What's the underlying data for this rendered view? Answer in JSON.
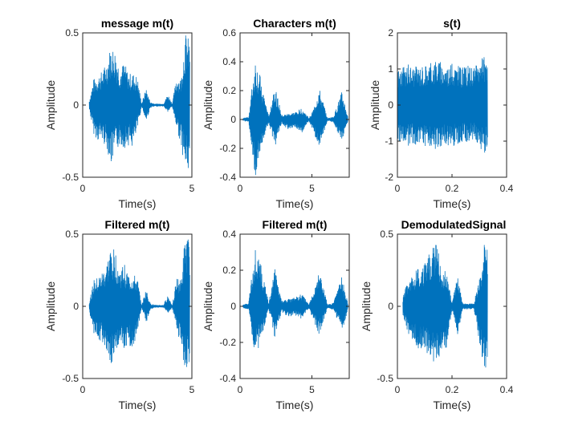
{
  "chart_data": [
    {
      "type": "line",
      "title": "message m(t)",
      "xlabel": "Time(s)",
      "ylabel": "Amplitude",
      "xlim": [
        0,
        5
      ],
      "ylim": [
        -0.5,
        0.5
      ],
      "xticks": [
        "0",
        "5"
      ],
      "yticks": [
        "-0.5",
        "0",
        "0.5"
      ],
      "color": "#0072BD",
      "series": [
        {
          "x": [
            0.3,
            0.5,
            0.7,
            0.9,
            1.1,
            1.3,
            1.5,
            1.7,
            1.9,
            2.1,
            2.3,
            2.5,
            2.7,
            2.9,
            3.1,
            3.3,
            3.5,
            3.7,
            3.9,
            4.1,
            4.3,
            4.5,
            4.7,
            4.9
          ],
          "y_max": [
            0.03,
            0.18,
            0.2,
            0.24,
            0.3,
            0.42,
            0.38,
            0.25,
            0.3,
            0.22,
            0.22,
            0.2,
            0.01,
            0.12,
            0.02,
            0.01,
            0.01,
            0.01,
            0.08,
            0.01,
            0.2,
            0.18,
            0.5,
            0.45
          ],
          "y_min": [
            -0.03,
            -0.2,
            -0.25,
            -0.25,
            -0.3,
            -0.42,
            -0.33,
            -0.28,
            -0.3,
            -0.28,
            -0.3,
            -0.18,
            -0.01,
            -0.12,
            -0.02,
            -0.01,
            -0.01,
            -0.01,
            -0.05,
            -0.01,
            -0.16,
            -0.28,
            -0.45,
            -0.47
          ]
        }
      ]
    },
    {
      "type": "line",
      "title": "Characters m(t)",
      "xlabel": "Time(s)",
      "ylabel": "Amplitude",
      "xlim": [
        0,
        7.6
      ],
      "ylim": [
        -0.4,
        0.6
      ],
      "xticks": [
        "0",
        "5"
      ],
      "yticks": [
        "-0.4",
        "-0.2",
        "0",
        "0.2",
        "0.4",
        "0.6"
      ],
      "color": "#0072BD",
      "series": [
        {
          "x": [
            0.2,
            0.6,
            1.05,
            1.4,
            2.0,
            2.4,
            2.9,
            3.3,
            3.8,
            4.3,
            4.8,
            5.1,
            5.5,
            6.1,
            6.5,
            7.1,
            7.5
          ],
          "y_max": [
            0.01,
            0.02,
            0.43,
            0.3,
            0.02,
            0.25,
            0.03,
            0.04,
            0.05,
            0.08,
            0.01,
            0.07,
            0.22,
            0.01,
            0.02,
            0.2,
            0.02
          ],
          "y_min": [
            -0.01,
            -0.02,
            -0.4,
            -0.22,
            -0.02,
            -0.2,
            -0.03,
            -0.07,
            -0.05,
            -0.1,
            -0.01,
            -0.09,
            -0.19,
            -0.01,
            -0.02,
            -0.16,
            -0.02
          ]
        }
      ]
    },
    {
      "type": "line",
      "title": "s(t)",
      "xlabel": "Time(s)",
      "ylabel": "Amplitude",
      "xlim": [
        0,
        0.4
      ],
      "ylim": [
        -2,
        2
      ],
      "xticks": [
        "0",
        "0.2",
        "0.4"
      ],
      "yticks": [
        "-2",
        "-1",
        "0",
        "1",
        "2"
      ],
      "color": "#0072BD",
      "series": [
        {
          "x": [
            0.0,
            0.02,
            0.04,
            0.06,
            0.08,
            0.1,
            0.12,
            0.14,
            0.16,
            0.18,
            0.2,
            0.22,
            0.24,
            0.26,
            0.28,
            0.3,
            0.32,
            0.33
          ],
          "y_max": [
            1.02,
            1.05,
            1.15,
            1.1,
            1.1,
            1.15,
            1.2,
            1.3,
            1.2,
            1.1,
            1.15,
            1.1,
            1.05,
            1.1,
            1.05,
            1.25,
            1.35,
            1.1
          ],
          "y_min": [
            -1.02,
            -1.05,
            -1.15,
            -1.1,
            -1.1,
            -1.15,
            -1.25,
            -1.3,
            -1.2,
            -1.1,
            -1.15,
            -1.1,
            -1.05,
            -1.1,
            -1.05,
            -1.25,
            -1.35,
            -1.1
          ]
        }
      ]
    },
    {
      "type": "line",
      "title": "Filtered m(t)",
      "xlabel": "Time(s)",
      "ylabel": "Amplitude",
      "xlim": [
        0,
        5
      ],
      "ylim": [
        -0.5,
        0.5
      ],
      "xticks": [
        "0",
        "5"
      ],
      "yticks": [
        "-0.5",
        "0",
        "0.5"
      ],
      "color": "#0072BD",
      "series": [
        {
          "x": [
            0.3,
            0.5,
            0.7,
            0.9,
            1.1,
            1.3,
            1.5,
            1.7,
            1.9,
            2.1,
            2.3,
            2.5,
            2.7,
            2.9,
            3.1,
            3.3,
            3.5,
            3.7,
            3.9,
            4.1,
            4.3,
            4.5,
            4.7,
            4.9
          ],
          "y_max": [
            0.03,
            0.18,
            0.2,
            0.24,
            0.3,
            0.42,
            0.38,
            0.25,
            0.3,
            0.22,
            0.22,
            0.2,
            0.01,
            0.12,
            0.02,
            0.01,
            0.01,
            0.01,
            0.08,
            0.01,
            0.2,
            0.18,
            0.5,
            0.45
          ],
          "y_min": [
            -0.03,
            -0.2,
            -0.25,
            -0.25,
            -0.3,
            -0.42,
            -0.33,
            -0.28,
            -0.3,
            -0.28,
            -0.3,
            -0.18,
            -0.01,
            -0.12,
            -0.02,
            -0.01,
            -0.01,
            -0.01,
            -0.05,
            -0.01,
            -0.16,
            -0.28,
            -0.45,
            -0.44
          ]
        }
      ]
    },
    {
      "type": "line",
      "title": "Filtered m(t)",
      "xlabel": "Time(s)",
      "ylabel": "Amplitude",
      "xlim": [
        0,
        7.6
      ],
      "ylim": [
        -0.4,
        0.4
      ],
      "xticks": [
        "0",
        "5"
      ],
      "yticks": [
        "-0.4",
        "-0.2",
        "0",
        "0.2",
        "0.4"
      ],
      "color": "#0072BD",
      "series": [
        {
          "x": [
            0.2,
            0.6,
            1.05,
            1.4,
            2.0,
            2.4,
            2.9,
            3.3,
            3.8,
            4.3,
            4.8,
            5.1,
            5.5,
            6.1,
            6.5,
            7.1,
            7.5
          ],
          "y_max": [
            0.01,
            0.02,
            0.35,
            0.25,
            0.02,
            0.22,
            0.03,
            0.04,
            0.05,
            0.07,
            0.01,
            0.08,
            0.2,
            0.01,
            0.02,
            0.17,
            0.02
          ],
          "y_min": [
            -0.01,
            -0.02,
            -0.3,
            -0.2,
            -0.02,
            -0.18,
            -0.03,
            -0.06,
            -0.05,
            -0.07,
            -0.01,
            -0.08,
            -0.16,
            -0.01,
            -0.02,
            -0.14,
            -0.02
          ]
        }
      ]
    },
    {
      "type": "line",
      "title": "DemodulatedSignal",
      "xlabel": "Time(s)",
      "ylabel": "Amplitude",
      "xlim": [
        0,
        0.4
      ],
      "ylim": [
        -0.5,
        0.5
      ],
      "xticks": [
        "0",
        "0.2",
        "0.4"
      ],
      "yticks": [
        "-0.5",
        "0",
        "0.5"
      ],
      "color": "#0072BD",
      "series": [
        {
          "x": [
            0.02,
            0.04,
            0.06,
            0.08,
            0.1,
            0.12,
            0.14,
            0.16,
            0.18,
            0.2,
            0.22,
            0.24,
            0.26,
            0.28,
            0.3,
            0.32,
            0.33
          ],
          "y_max": [
            0.06,
            0.2,
            0.24,
            0.28,
            0.3,
            0.38,
            0.45,
            0.3,
            0.25,
            0.02,
            0.22,
            0.02,
            0.02,
            0.02,
            0.2,
            0.5,
            0.45
          ],
          "y_min": [
            -0.06,
            -0.2,
            -0.25,
            -0.3,
            -0.3,
            -0.38,
            -0.4,
            -0.35,
            -0.3,
            -0.02,
            -0.2,
            -0.02,
            -0.02,
            -0.02,
            -0.25,
            -0.45,
            -0.38
          ]
        }
      ]
    }
  ]
}
